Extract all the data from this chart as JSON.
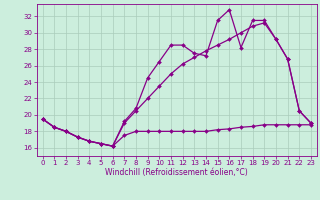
{
  "xlabel": "Windchill (Refroidissement éolien,°C)",
  "bg_color": "#cceedd",
  "grid_color": "#aaccbb",
  "line_color": "#880088",
  "xlim": [
    -0.5,
    23.5
  ],
  "ylim": [
    15.0,
    33.5
  ],
  "yticks": [
    16,
    18,
    20,
    22,
    24,
    26,
    28,
    30,
    32
  ],
  "xticks": [
    0,
    1,
    2,
    3,
    4,
    5,
    6,
    7,
    8,
    9,
    10,
    11,
    12,
    13,
    14,
    15,
    16,
    17,
    18,
    19,
    20,
    21,
    22,
    23
  ],
  "line1_x": [
    0,
    1,
    2,
    3,
    4,
    5,
    6,
    7,
    8,
    9,
    10,
    11,
    12,
    13,
    14,
    15,
    16,
    17,
    18,
    19,
    20,
    21,
    22,
    23
  ],
  "line1_y": [
    19.5,
    18.5,
    18.0,
    17.3,
    16.8,
    16.5,
    16.2,
    19.2,
    20.8,
    24.5,
    26.5,
    28.5,
    28.5,
    27.5,
    27.2,
    31.5,
    32.8,
    28.2,
    31.5,
    31.5,
    29.2,
    26.8,
    20.5,
    19.0
  ],
  "line2_x": [
    0,
    1,
    2,
    3,
    4,
    5,
    6,
    7,
    8,
    9,
    10,
    11,
    12,
    13,
    14,
    15,
    16,
    17,
    18,
    19,
    20,
    21,
    22,
    23
  ],
  "line2_y": [
    19.5,
    18.5,
    18.0,
    17.3,
    16.8,
    16.5,
    16.2,
    17.5,
    18.0,
    18.0,
    18.0,
    18.0,
    18.0,
    18.0,
    18.0,
    18.2,
    18.3,
    18.5,
    18.6,
    18.8,
    18.8,
    18.8,
    18.8,
    18.8
  ],
  "line3_x": [
    0,
    1,
    2,
    3,
    4,
    5,
    6,
    7,
    8,
    9,
    10,
    11,
    12,
    13,
    14,
    15,
    16,
    17,
    18,
    19,
    20,
    21,
    22,
    23
  ],
  "line3_y": [
    19.5,
    18.5,
    18.0,
    17.3,
    16.8,
    16.5,
    16.2,
    19.0,
    20.5,
    22.0,
    23.5,
    25.0,
    26.2,
    27.0,
    27.8,
    28.5,
    29.2,
    30.0,
    30.8,
    31.2,
    29.2,
    26.8,
    20.5,
    19.0
  ],
  "label_fontsize": 5.5,
  "tick_fontsize": 5.0
}
